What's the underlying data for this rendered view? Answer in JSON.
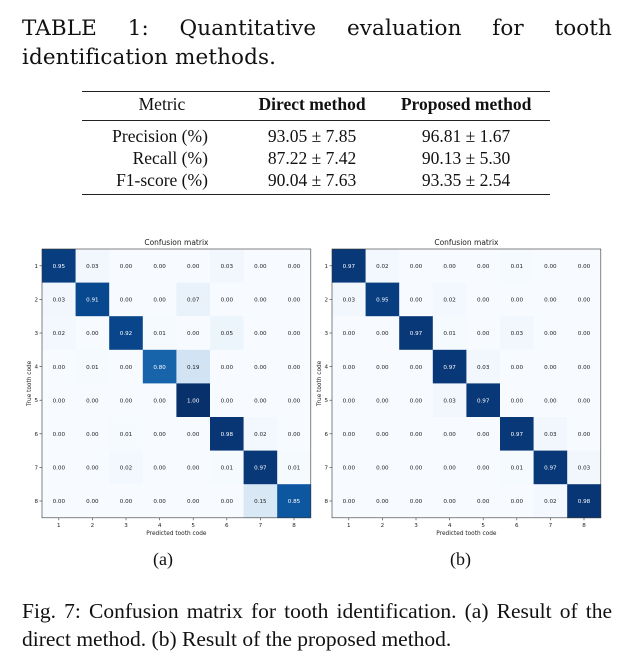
{
  "table": {
    "caption": "TABLE 1: Quantitative evaluation for tooth identification methods.",
    "headers": [
      "Metric",
      "Direct method",
      "Proposed method"
    ],
    "rows": [
      [
        "Precision (%)",
        "93.05 ± 7.85",
        "96.81 ± 1.67"
      ],
      [
        "Recall (%)",
        "87.22 ± 7.42",
        "90.13 ± 5.30"
      ],
      [
        "F1-score (%)",
        "90.04 ± 7.63",
        "93.35 ± 2.54"
      ]
    ]
  },
  "figure": {
    "caption": "Fig. 7: Confusion matrix for tooth identification. (a) Result of the direct method. (b) Result of the proposed method.",
    "sublabels": [
      "(a)",
      "(b)"
    ]
  },
  "chart_data": [
    {
      "type": "heatmap",
      "title": "Confusion matrix",
      "xlabel": "Predicted tooth code",
      "ylabel": "True tooth code",
      "x_categories": [
        "1",
        "2",
        "3",
        "4",
        "5",
        "6",
        "7",
        "8"
      ],
      "y_categories": [
        "1",
        "2",
        "3",
        "4",
        "5",
        "6",
        "7",
        "8"
      ],
      "colormap": "Blues",
      "values": [
        [
          0.95,
          0.03,
          0.0,
          0.0,
          0.0,
          0.03,
          0.0,
          0.0
        ],
        [
          0.03,
          0.91,
          0.0,
          0.0,
          0.07,
          0.0,
          0.0,
          0.0
        ],
        [
          0.02,
          0.0,
          0.92,
          0.01,
          0.0,
          0.05,
          0.0,
          0.0
        ],
        [
          0.0,
          0.01,
          0.0,
          0.8,
          0.19,
          0.0,
          0.0,
          0.0
        ],
        [
          0.0,
          0.0,
          0.0,
          0.0,
          1.0,
          0.0,
          0.0,
          0.0
        ],
        [
          0.0,
          0.0,
          0.01,
          0.0,
          0.0,
          0.98,
          0.02,
          0.0
        ],
        [
          0.0,
          0.0,
          0.02,
          0.0,
          0.0,
          0.01,
          0.97,
          0.01
        ],
        [
          0.0,
          0.0,
          0.0,
          0.0,
          0.0,
          0.0,
          0.15,
          0.85
        ]
      ]
    },
    {
      "type": "heatmap",
      "title": "Confusion matrix",
      "xlabel": "Predicted tooth code",
      "ylabel": "True tooth code",
      "x_categories": [
        "1",
        "2",
        "3",
        "4",
        "5",
        "6",
        "7",
        "8"
      ],
      "y_categories": [
        "1",
        "2",
        "3",
        "4",
        "5",
        "6",
        "7",
        "8"
      ],
      "colormap": "Blues",
      "values": [
        [
          0.97,
          0.02,
          0.0,
          0.0,
          0.0,
          0.01,
          0.0,
          0.0
        ],
        [
          0.03,
          0.95,
          0.0,
          0.02,
          0.0,
          0.0,
          0.0,
          0.0
        ],
        [
          0.0,
          0.0,
          0.97,
          0.01,
          0.0,
          0.03,
          0.0,
          0.0
        ],
        [
          0.0,
          0.0,
          0.0,
          0.97,
          0.03,
          0.0,
          0.0,
          0.0
        ],
        [
          0.0,
          0.0,
          0.0,
          0.03,
          0.97,
          0.0,
          0.0,
          0.0
        ],
        [
          0.0,
          0.0,
          0.0,
          0.0,
          0.0,
          0.97,
          0.03,
          0.0
        ],
        [
          0.0,
          0.0,
          0.0,
          0.0,
          0.0,
          0.01,
          0.97,
          0.03
        ],
        [
          0.0,
          0.0,
          0.0,
          0.0,
          0.0,
          0.0,
          0.02,
          0.98
        ]
      ]
    }
  ]
}
